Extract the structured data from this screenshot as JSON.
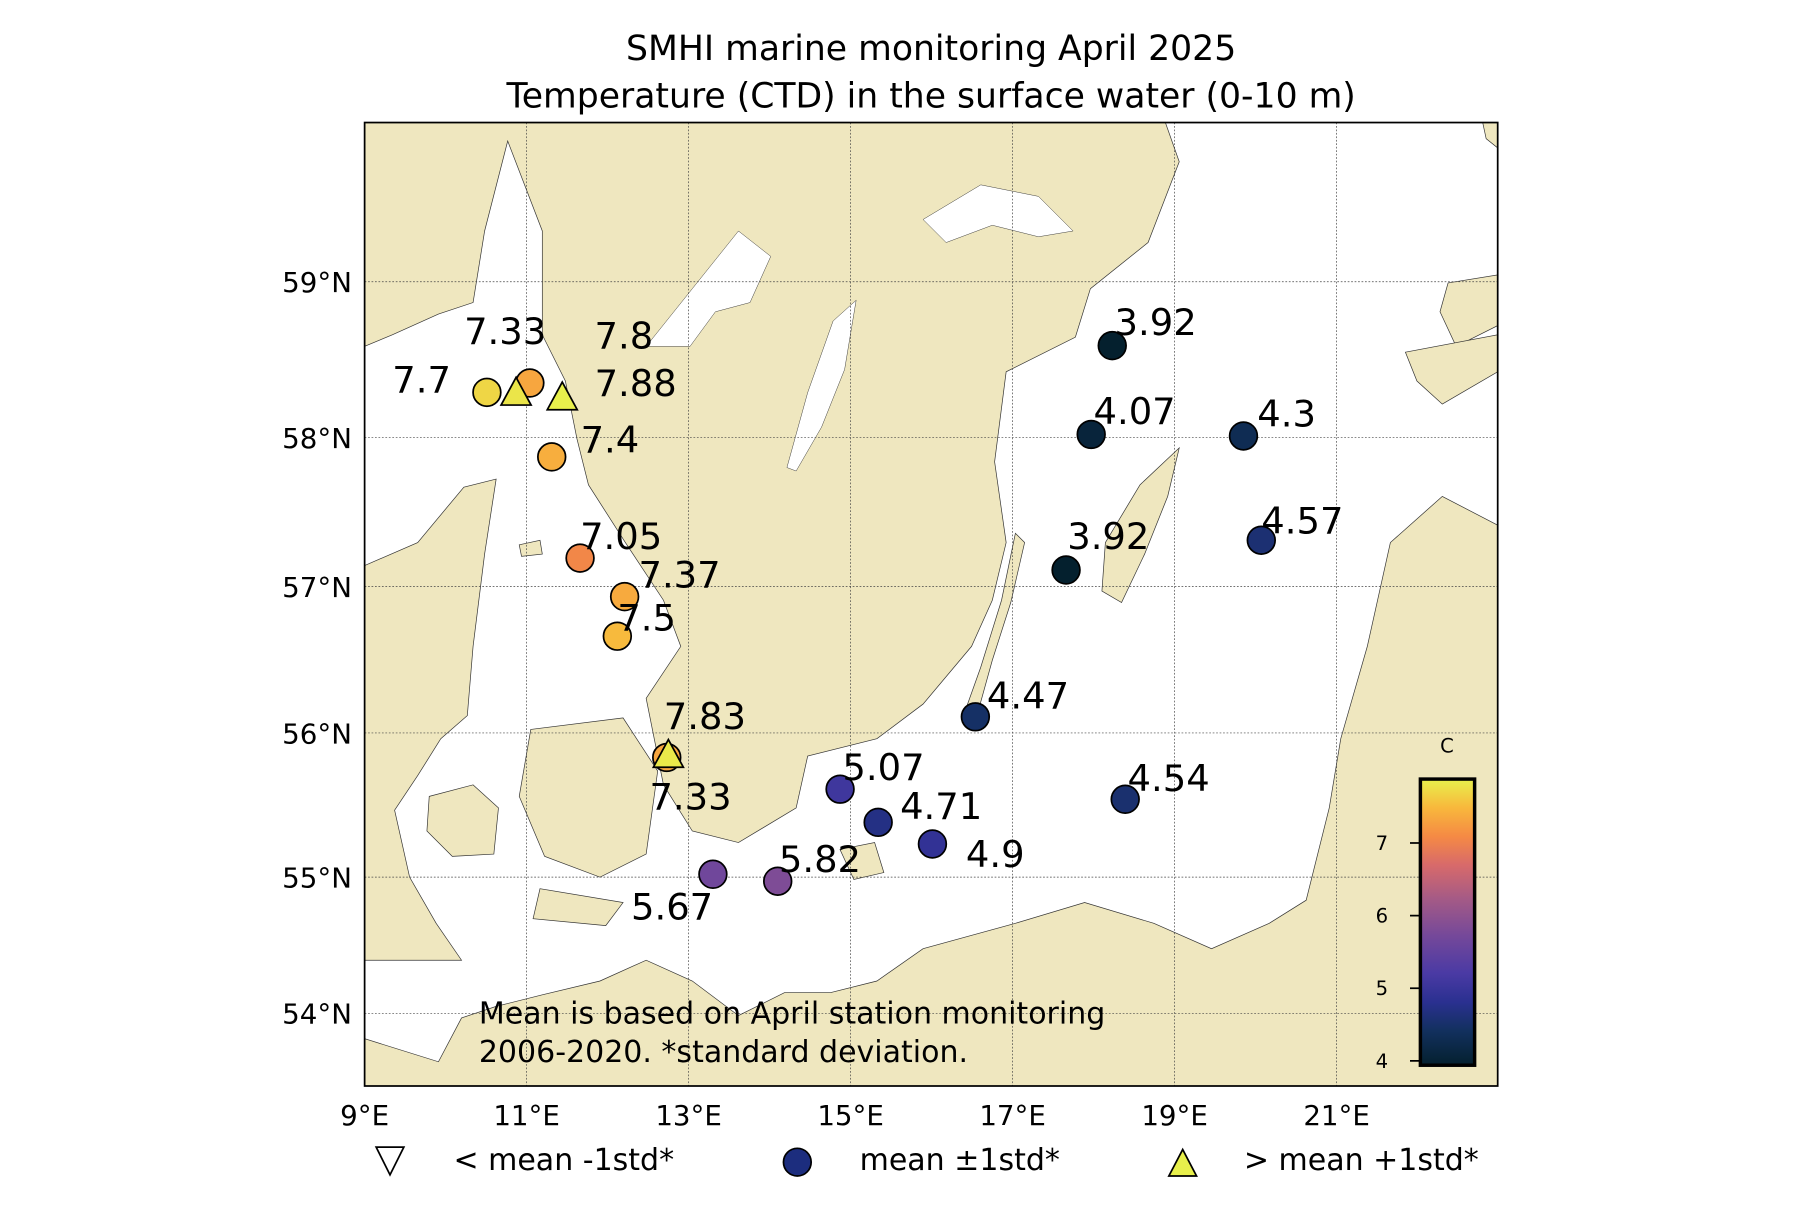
{
  "chart_data": {
    "type": "scatter",
    "title": "SMHI marine monitoring April 2025",
    "subtitle": "Temperature (CTD) in the surface water (0-10 m)",
    "xlim": [
      9,
      23
    ],
    "ylim": [
      53.5,
      60
    ],
    "grid": true,
    "x_ticks": [
      "9°E",
      "11°E",
      "13°E",
      "15°E",
      "17°E",
      "19°E",
      "21°E"
    ],
    "x_tick_values": [
      9,
      11,
      13,
      15,
      17,
      19,
      21
    ],
    "y_ticks": [
      "54°N",
      "55°N",
      "56°N",
      "57°N",
      "58°N",
      "59°N"
    ],
    "y_tick_values": [
      54,
      55,
      56,
      57,
      58,
      59
    ],
    "colorbar": {
      "label": "C",
      "range": [
        3.94,
        7.88
      ],
      "ticks": [
        "4",
        "5",
        "6",
        "7"
      ],
      "tick_values": [
        4,
        5,
        6,
        7
      ]
    },
    "legend": [
      {
        "marker": "triangle-down",
        "label": "< mean -1std*"
      },
      {
        "marker": "circle",
        "label": "mean ±1std*"
      },
      {
        "marker": "triangle-up",
        "label": "> mean +1std*"
      }
    ],
    "legend_colors": {
      "circle": "#1c2d7e",
      "triangle": "#e8f04c"
    },
    "annotation": [
      "Mean is based on April station monitoring",
      "2006-2020. *standard deviation."
    ],
    "stations": [
      {
        "lon": 10.51,
        "lat": 58.29,
        "value": "7.7",
        "marker": "circle"
      },
      {
        "lon": 11.04,
        "lat": 58.35,
        "value": "7.33",
        "marker": "circle"
      },
      {
        "lon": 10.87,
        "lat": 58.29,
        "value": "7.8",
        "marker": "triangle-up"
      },
      {
        "lon": 11.44,
        "lat": 58.26,
        "value": "7.88",
        "marker": "triangle-up"
      },
      {
        "lon": 11.31,
        "lat": 57.87,
        "value": "7.4",
        "marker": "circle"
      },
      {
        "lon": 11.66,
        "lat": 57.19,
        "value": "7.05",
        "marker": "circle"
      },
      {
        "lon": 12.21,
        "lat": 56.93,
        "value": "7.37",
        "marker": "circle"
      },
      {
        "lon": 12.12,
        "lat": 56.66,
        "value": "7.5",
        "marker": "circle"
      },
      {
        "lon": 12.73,
        "lat": 55.83,
        "value": "7.33",
        "marker": "circle"
      },
      {
        "lon": 12.75,
        "lat": 55.85,
        "value": "7.83",
        "marker": "triangle-up"
      },
      {
        "lon": 13.3,
        "lat": 55.02,
        "value": "5.67",
        "marker": "circle"
      },
      {
        "lon": 14.1,
        "lat": 54.97,
        "value": "5.82",
        "marker": "circle"
      },
      {
        "lon": 14.87,
        "lat": 55.61,
        "value": "5.07",
        "marker": "circle"
      },
      {
        "lon": 15.34,
        "lat": 55.38,
        "value": "4.71",
        "marker": "circle"
      },
      {
        "lon": 16.01,
        "lat": 55.23,
        "value": "4.9",
        "marker": "circle"
      },
      {
        "lon": 16.54,
        "lat": 56.11,
        "value": "4.47",
        "marker": "circle"
      },
      {
        "lon": 18.39,
        "lat": 55.54,
        "value": "4.54",
        "marker": "circle"
      },
      {
        "lon": 17.66,
        "lat": 57.11,
        "value": "3.92",
        "marker": "circle"
      },
      {
        "lon": 18.23,
        "lat": 58.59,
        "value": "3.92",
        "marker": "circle"
      },
      {
        "lon": 17.97,
        "lat": 58.02,
        "value": "4.07",
        "marker": "circle"
      },
      {
        "lon": 19.85,
        "lat": 58.01,
        "value": "4.3",
        "marker": "circle"
      },
      {
        "lon": 20.07,
        "lat": 57.31,
        "value": "4.57",
        "marker": "circle"
      }
    ]
  }
}
